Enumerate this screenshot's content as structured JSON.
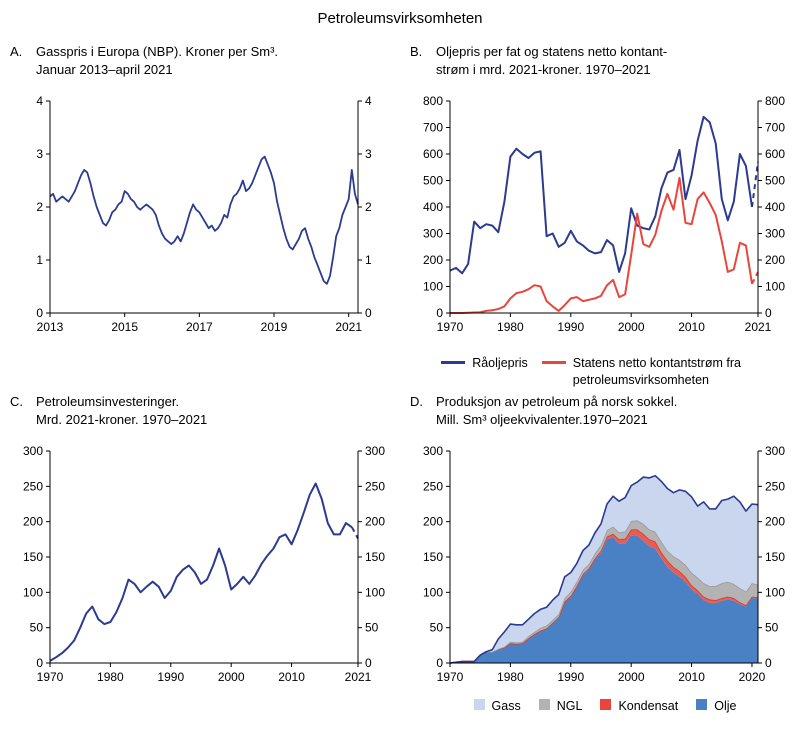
{
  "page_title": "Petroleumsvirksomheten",
  "chart_data": [
    {
      "id": "A",
      "type": "line",
      "letter": "A.",
      "title_line1": "Gasspris i Europa (NBP). Kroner per Sm³.",
      "title_line2": "Januar 2013–april 2021",
      "xlim": [
        2013,
        2021.25
      ],
      "ylim": [
        0,
        4
      ],
      "xticks": [
        2013,
        2015,
        2017,
        2019,
        2021
      ],
      "yticks": [
        0,
        1,
        2,
        3,
        4
      ],
      "x_start": 2013,
      "x_step": 0.0833333,
      "series": [
        {
          "name": "Gasspris NBP",
          "color": "#2B3B8F",
          "width": 1.8,
          "values": [
            2.2,
            2.25,
            2.1,
            2.15,
            2.2,
            2.15,
            2.1,
            2.2,
            2.3,
            2.45,
            2.6,
            2.7,
            2.65,
            2.45,
            2.2,
            2.0,
            1.85,
            1.7,
            1.65,
            1.75,
            1.9,
            1.95,
            2.05,
            2.1,
            2.3,
            2.25,
            2.15,
            2.1,
            2.0,
            1.95,
            2.0,
            2.05,
            2.0,
            1.95,
            1.85,
            1.65,
            1.5,
            1.4,
            1.35,
            1.3,
            1.35,
            1.45,
            1.35,
            1.5,
            1.7,
            1.9,
            2.05,
            1.95,
            1.9,
            1.8,
            1.7,
            1.6,
            1.65,
            1.55,
            1.6,
            1.7,
            1.85,
            1.8,
            2.05,
            2.2,
            2.25,
            2.35,
            2.5,
            2.3,
            2.35,
            2.45,
            2.6,
            2.75,
            2.9,
            2.95,
            2.8,
            2.65,
            2.45,
            2.1,
            1.85,
            1.6,
            1.4,
            1.25,
            1.2,
            1.3,
            1.4,
            1.55,
            1.6,
            1.4,
            1.25,
            1.05,
            0.9,
            0.75,
            0.6,
            0.55,
            0.7,
            1.05,
            1.45,
            1.6,
            1.85,
            2.0,
            2.15,
            2.7,
            2.25,
            2.05
          ]
        }
      ]
    },
    {
      "id": "B",
      "type": "line",
      "letter": "B.",
      "title_line1": "Oljepris per fat og statens netto kontant-",
      "title_line2": "strøm i mrd. 2021-kroner. 1970–2021",
      "xlim": [
        1970,
        2021
      ],
      "ylim": [
        0,
        800
      ],
      "xticks": [
        1970,
        1980,
        1990,
        2000,
        2010,
        2021
      ],
      "yticks": [
        0,
        100,
        200,
        300,
        400,
        500,
        600,
        700,
        800
      ],
      "x_start": 1970,
      "x_step": 1,
      "series": [
        {
          "name": "Råoljepris",
          "color": "#2B3B8F",
          "width": 2,
          "dashed_from": 50,
          "values": [
            160,
            170,
            150,
            185,
            345,
            320,
            335,
            330,
            305,
            420,
            590,
            620,
            600,
            585,
            605,
            610,
            290,
            300,
            250,
            265,
            310,
            270,
            255,
            235,
            225,
            230,
            275,
            255,
            155,
            225,
            395,
            330,
            320,
            315,
            365,
            470,
            530,
            540,
            615,
            430,
            520,
            650,
            740,
            720,
            640,
            430,
            350,
            420,
            600,
            555,
            400,
            570
          ]
        },
        {
          "name": "Statens netto kontantstrøm fra petroleumsvirksomheten",
          "color": "#E8463C",
          "width": 2,
          "dashed_from": 50,
          "values": [
            0,
            0,
            0,
            1,
            2,
            3,
            8,
            10,
            15,
            25,
            55,
            75,
            80,
            90,
            105,
            100,
            45,
            25,
            8,
            30,
            55,
            60,
            45,
            50,
            55,
            65,
            105,
            125,
            60,
            70,
            220,
            375,
            260,
            250,
            295,
            385,
            450,
            390,
            510,
            340,
            335,
            430,
            455,
            415,
            370,
            270,
            155,
            165,
            265,
            255,
            110,
            155
          ]
        }
      ],
      "legend": [
        {
          "label": "Råoljepris",
          "color": "#2B3B8F"
        },
        {
          "label": "Statens netto kontantstrøm fra petroleumsvirksomheten",
          "color": "#E8463C"
        }
      ]
    },
    {
      "id": "C",
      "type": "line",
      "letter": "C.",
      "title_line1": "Petroleumsinvesteringer.",
      "title_line2": "Mrd. 2021-kroner. 1970–2021",
      "xlim": [
        1970,
        2021
      ],
      "ylim": [
        0,
        300
      ],
      "xticks": [
        1970,
        1980,
        1990,
        2000,
        2010,
        2021
      ],
      "yticks": [
        0,
        50,
        100,
        150,
        200,
        250,
        300
      ],
      "x_start": 1970,
      "x_step": 1,
      "series": [
        {
          "name": "Petroleumsinvesteringer",
          "color": "#2B3B8F",
          "width": 2,
          "dashed_from": 50,
          "values": [
            3,
            8,
            14,
            22,
            32,
            50,
            70,
            80,
            62,
            55,
            58,
            72,
            92,
            118,
            112,
            100,
            108,
            115,
            108,
            92,
            102,
            122,
            132,
            138,
            128,
            112,
            118,
            138,
            162,
            138,
            104,
            112,
            122,
            112,
            124,
            140,
            152,
            162,
            178,
            182,
            168,
            188,
            212,
            238,
            254,
            232,
            198,
            182,
            182,
            198,
            192,
            176
          ]
        }
      ]
    },
    {
      "id": "D",
      "type": "stacked_area",
      "letter": "D.",
      "title_line1": "Produksjon av petroleum på norsk sokkel.",
      "title_line2": "Mill. Sm³ oljeekvivalenter.1970–2021",
      "xlim": [
        1970,
        2021
      ],
      "ylim": [
        0,
        300
      ],
      "xticks": [
        1970,
        1980,
        1990,
        2000,
        2010,
        2020
      ],
      "yticks": [
        0,
        50,
        100,
        150,
        200,
        250,
        300
      ],
      "x_start": 1970,
      "x_step": 1,
      "series": [
        {
          "name": "Olje",
          "fill": "#4A80C4",
          "stroke": "",
          "values": [
            0,
            1,
            2,
            2,
            2,
            11,
            16,
            16,
            20,
            22,
            28,
            27,
            28,
            35,
            41,
            45,
            48,
            56,
            64,
            86,
            94,
            108,
            124,
            132,
            146,
            156,
            175,
            178,
            169,
            169,
            181,
            180,
            173,
            165,
            162,
            148,
            136,
            128,
            122,
            115,
            104,
            98,
            89,
            85,
            85,
            88,
            90,
            88,
            83,
            80,
            92,
            91
          ]
        },
        {
          "name": "Kondensat",
          "fill": "#E95C52",
          "stroke": "#E0362C",
          "values": [
            0,
            0,
            0,
            0,
            0,
            0,
            0,
            0,
            0,
            0,
            0,
            0,
            0,
            0,
            0,
            1,
            1,
            1,
            1,
            1,
            1,
            1,
            2,
            2,
            2,
            3,
            4,
            5,
            6,
            7,
            8,
            9,
            10,
            10,
            10,
            9,
            9,
            8,
            8,
            7,
            6,
            5,
            5,
            5,
            4,
            4,
            4,
            4,
            3,
            2,
            2,
            2
          ]
        },
        {
          "name": "NGL",
          "fill": "#B3B3B3",
          "stroke": "#9A9A9A",
          "values": [
            0,
            0,
            0,
            0,
            0,
            0,
            0,
            0,
            0,
            1,
            2,
            2,
            2,
            3,
            3,
            4,
            4,
            4,
            4,
            5,
            6,
            6,
            6,
            6,
            7,
            8,
            9,
            10,
            10,
            10,
            12,
            13,
            14,
            14,
            14,
            15,
            14,
            15,
            16,
            17,
            18,
            18,
            19,
            19,
            20,
            21,
            21,
            20,
            20,
            19,
            19,
            18
          ]
        },
        {
          "name": "Gass",
          "fill": "#C9D6EE",
          "stroke": "#2B3B8F",
          "values": [
            0,
            0,
            0,
            0,
            0,
            0,
            0,
            3,
            14,
            21,
            25,
            25,
            24,
            24,
            26,
            26,
            26,
            28,
            28,
            30,
            27,
            26,
            27,
            27,
            29,
            30,
            37,
            43,
            44,
            48,
            50,
            54,
            66,
            73,
            79,
            85,
            88,
            90,
            99,
            104,
            107,
            101,
            115,
            109,
            109,
            117,
            117,
            124,
            122,
            114,
            112,
            113
          ]
        }
      ],
      "legend": [
        {
          "label": "Gass",
          "color": "#C9D6EE"
        },
        {
          "label": "NGL",
          "color": "#B3B3B3"
        },
        {
          "label": "Kondensat",
          "color": "#E8463C"
        },
        {
          "label": "Olje",
          "color": "#4A80C4"
        }
      ]
    }
  ]
}
